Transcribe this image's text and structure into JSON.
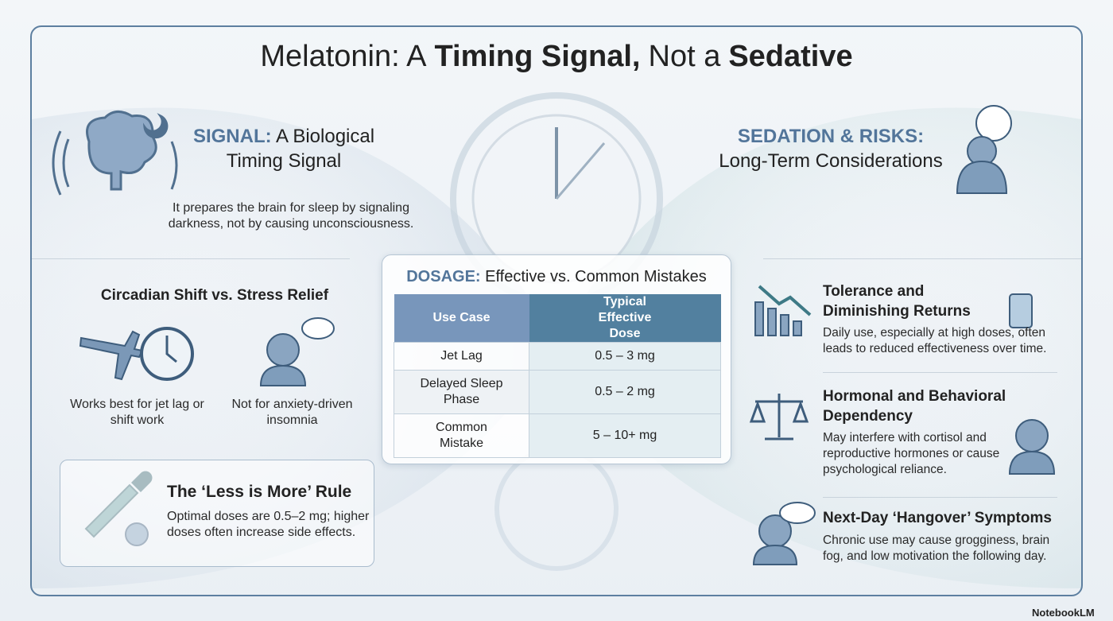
{
  "title": {
    "parts": [
      "Melatonin: A",
      "Timing Signal,",
      "Not a",
      "Sedative"
    ]
  },
  "signal": {
    "label": "SIGNAL:",
    "heading": "A Biological Timing Signal",
    "text": "It prepares the brain for sleep by signaling darkness, not by causing unconsciousness."
  },
  "circadian": {
    "heading": "Circadian Shift vs. Stress Relief",
    "items": [
      "Works best for jet lag or shift work",
      "Not for anxiety-driven insomnia"
    ]
  },
  "rule": {
    "heading": "The ‘Less is More’ Rule",
    "text": "Optimal doses are 0.5–2 mg; higher doses often increase side effects."
  },
  "dosage": {
    "label": "DOSAGE:",
    "heading": "Effective vs. Common Mistakes",
    "columns": [
      "Use Case",
      "Typical Effective Dose"
    ],
    "rows": [
      [
        "Jet Lag",
        "0.5 – 3 mg"
      ],
      [
        "Delayed Sleep Phase",
        "0.5 – 2 mg"
      ],
      [
        "Common Mistake",
        "5 – 10+ mg"
      ]
    ]
  },
  "risks": {
    "label": "SEDATION & RISKS:",
    "heading": "Long-Term Considerations",
    "items": [
      {
        "heading": "Tolerance and Diminishing Returns",
        "text": "Daily use, especially at high doses, often leads to reduced effectiveness over time."
      },
      {
        "heading": "Hormonal and Behavioral Dependency",
        "text": "May interfere with cortisol and reproductive hormones or cause psychological reliance."
      },
      {
        "heading": "Next-Day ‘Hangover’ Symptoms",
        "text": "Chronic use may cause grogginess, brain fog, and low motivation the following day."
      }
    ]
  },
  "footer": {
    "brand": "NotebookLM"
  }
}
